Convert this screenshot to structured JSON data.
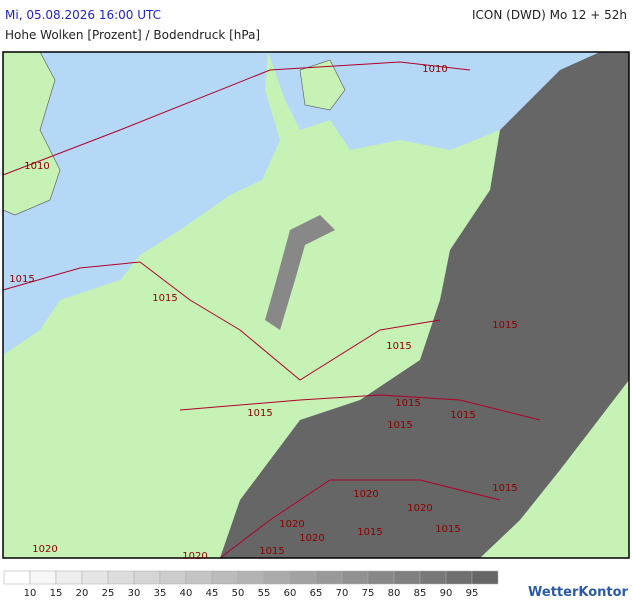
{
  "header": {
    "datetime": "Mi, 05.08.2026 16:00 UTC",
    "model": "ICON (DWD) Mo 12 + 52h",
    "subtitle": "Hohe Wolken [Prozent] / Bodendruck [hPa]"
  },
  "isobar_labels": [
    1010,
    1010,
    1015,
    1015,
    1015,
    1015,
    1015,
    1015,
    1015,
    1015,
    1020,
    1015,
    1020,
    1020,
    1015,
    1015,
    1020,
    1020,
    1015,
    1020
  ],
  "legend": {
    "labels": [
      10,
      15,
      20,
      25,
      30,
      35,
      40,
      45,
      50,
      55,
      60,
      65,
      70,
      75,
      80,
      85,
      90,
      95
    ]
  },
  "brand": "WetterKontor"
}
